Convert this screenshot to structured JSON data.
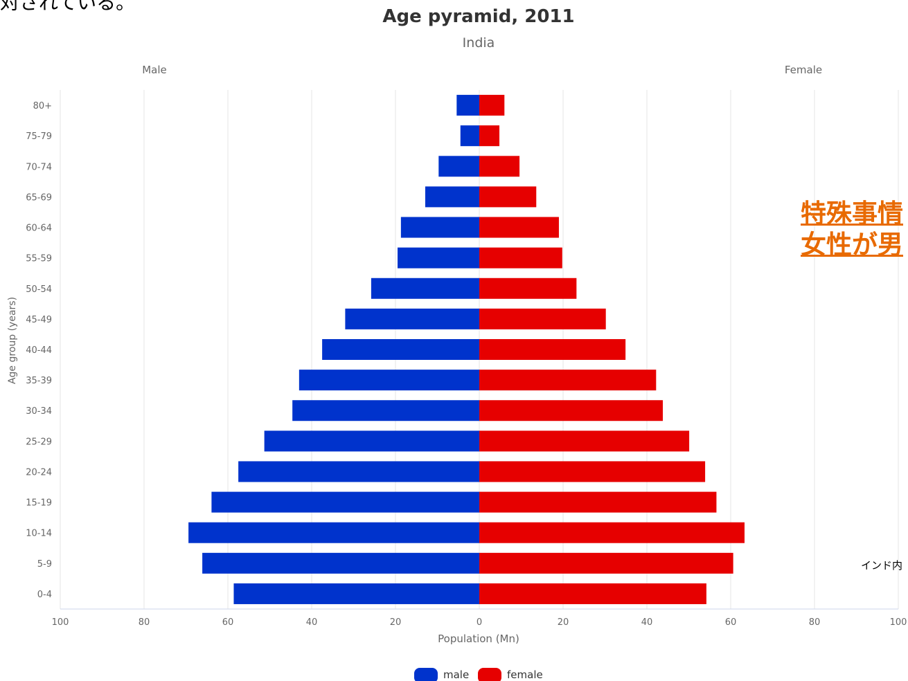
{
  "chart_data": {
    "type": "bar",
    "orientation": "horizontal",
    "title": "Age pyramid, 2011",
    "subtitle": "India",
    "left_side_label": "Male",
    "right_side_label": "Female",
    "xlabel": "Population (Mn)",
    "ylabel": "Age group (years)",
    "xlim": [
      -100,
      100
    ],
    "x_ticks": [
      "100",
      "80",
      "60",
      "40",
      "20",
      "0",
      "20",
      "40",
      "60",
      "80",
      "100"
    ],
    "grid": true,
    "legend_position": "bottom-center",
    "categories": [
      "80+",
      "75-79",
      "70-74",
      "65-69",
      "60-64",
      "55-59",
      "50-54",
      "45-49",
      "40-44",
      "35-39",
      "30-34",
      "25-29",
      "20-24",
      "15-19",
      "10-14",
      "5-9",
      "0-4"
    ],
    "series": [
      {
        "name": "male",
        "color": "#0033cc",
        "values": [
          5.4,
          4.5,
          9.7,
          12.9,
          18.7,
          19.5,
          25.8,
          32.0,
          37.5,
          43.0,
          44.6,
          51.3,
          57.5,
          63.9,
          69.4,
          66.1,
          58.6
        ]
      },
      {
        "name": "female",
        "color": "#e60000",
        "values": [
          6.0,
          4.8,
          9.6,
          13.6,
          19.0,
          19.8,
          23.2,
          30.2,
          34.9,
          42.2,
          43.8,
          50.1,
          53.9,
          56.6,
          63.3,
          60.6,
          54.2
        ]
      }
    ]
  },
  "overlay": {
    "top_fragment": "対されている。",
    "jp_line1": "特殊事情",
    "jp_line2": "女性が男",
    "small_text": "インド内"
  }
}
